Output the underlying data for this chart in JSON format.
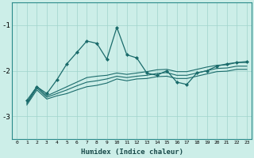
{
  "title": "",
  "xlabel": "Humidex (Indice chaleur)",
  "ylabel": "",
  "background_color": "#cceee8",
  "line_color": "#1a6b6b",
  "xlim": [
    -0.5,
    23.5
  ],
  "ylim": [
    -3.5,
    -0.5
  ],
  "yticks": [
    -3,
    -2,
    -1
  ],
  "xlim_data": [
    0,
    23
  ],
  "series": [
    [
      null,
      -2.65,
      -2.35,
      -2.5,
      -2.2,
      -1.85,
      -1.6,
      -1.35,
      -1.4,
      -1.75,
      -1.05,
      -1.65,
      -1.72,
      -2.05,
      -2.1,
      -2.0,
      -2.25,
      -2.3,
      -2.05,
      -2.0,
      -1.9,
      -1.85,
      -1.82,
      -1.8
    ],
    [
      null,
      -2.7,
      -2.35,
      -2.55,
      -2.45,
      -2.35,
      -2.25,
      -2.15,
      -2.12,
      -2.1,
      -2.05,
      -2.08,
      -2.05,
      -2.02,
      -1.98,
      -1.97,
      -2.02,
      -2.02,
      -1.97,
      -1.92,
      -1.88,
      -1.87,
      -1.82,
      -1.82
    ],
    [
      null,
      -2.72,
      -2.38,
      -2.58,
      -2.5,
      -2.42,
      -2.33,
      -2.25,
      -2.22,
      -2.18,
      -2.12,
      -2.15,
      -2.12,
      -2.1,
      -2.06,
      -2.04,
      -2.1,
      -2.1,
      -2.05,
      -2.0,
      -1.95,
      -1.94,
      -1.9,
      -1.9
    ],
    [
      null,
      -2.75,
      -2.42,
      -2.62,
      -2.55,
      -2.5,
      -2.42,
      -2.35,
      -2.32,
      -2.27,
      -2.18,
      -2.22,
      -2.18,
      -2.17,
      -2.13,
      -2.12,
      -2.17,
      -2.17,
      -2.12,
      -2.07,
      -2.02,
      -2.01,
      -1.97,
      -1.97
    ]
  ],
  "marked_series_idx": 0,
  "marker": "D",
  "marker_size": 2.0,
  "linewidth_marked": 0.9,
  "linewidth_plain": 0.8
}
